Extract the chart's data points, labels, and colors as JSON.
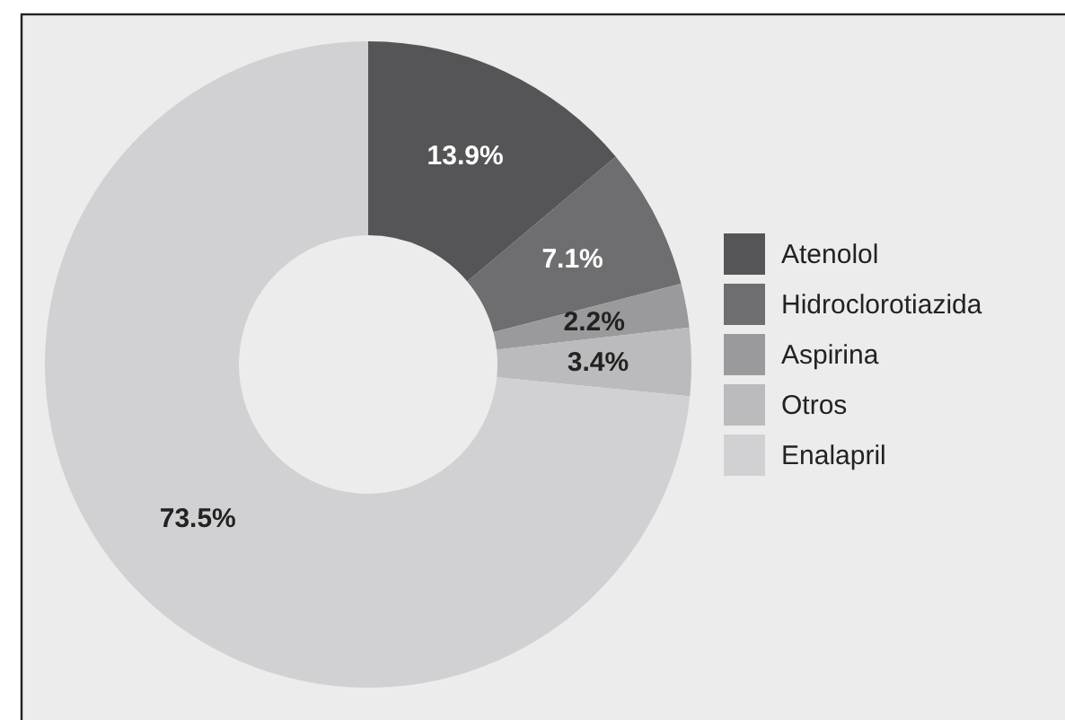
{
  "chart_data": {
    "type": "donut",
    "categories": [
      "Atenolol",
      "Hidroclorotiazida",
      "Aspirina",
      "Otros",
      "Enalapril"
    ],
    "values": [
      13.9,
      7.1,
      2.2,
      3.4,
      73.5
    ],
    "colors": [
      "#555557",
      "#6e6e70",
      "#9a9a9c",
      "#bbbbbd",
      "#d1d1d3"
    ],
    "value_labels": [
      "13.9%",
      "7.1%",
      "2.2%",
      "3.4%",
      "73.5%"
    ],
    "legend": "right"
  }
}
